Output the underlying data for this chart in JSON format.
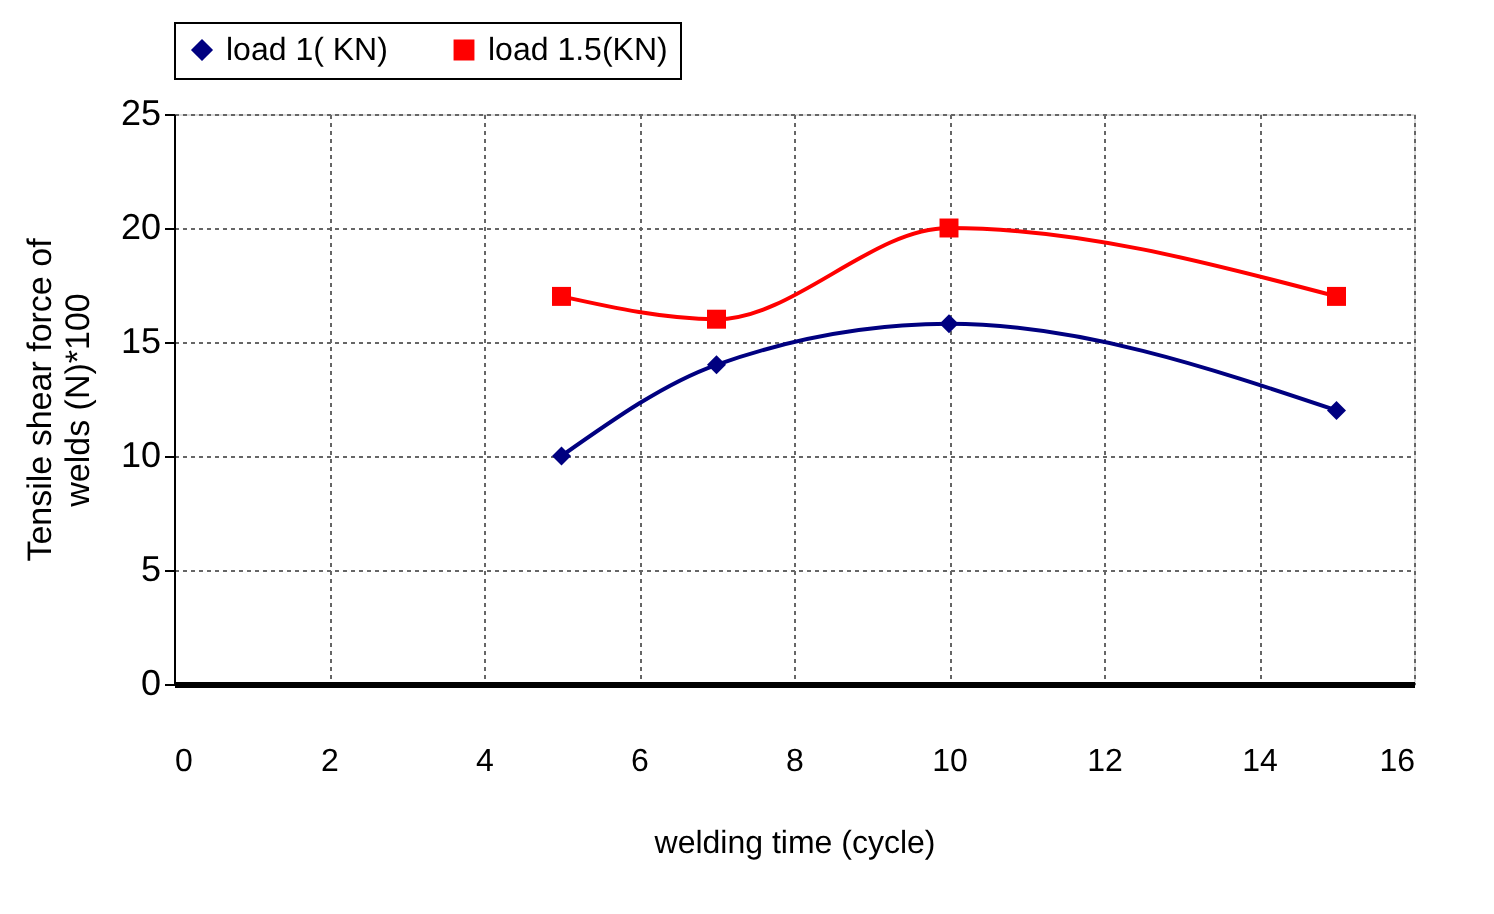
{
  "chart_data": {
    "type": "line",
    "xlabel": "welding time  (cycle)",
    "ylabel": [
      "Tensile shear force of",
      "welds (N)*100"
    ],
    "x": [
      5,
      7,
      10,
      15
    ],
    "series": [
      {
        "name": "load 1( KN)",
        "color": "#000080",
        "values": [
          10,
          14,
          15.8,
          12
        ],
        "marker": "diamond"
      },
      {
        "name": "load 1.5(KN)",
        "color": "#ff0000",
        "values": [
          17,
          16,
          20,
          17
        ],
        "marker": "square"
      }
    ],
    "xlim": [
      0,
      16
    ],
    "xticks": [
      0,
      2,
      4,
      6,
      8,
      10,
      12,
      14,
      16
    ],
    "ylim": [
      0,
      25
    ],
    "yticks": [
      0,
      5,
      10,
      15,
      20,
      25
    ],
    "grid": true,
    "legend": "top",
    "line_style": "solid"
  }
}
